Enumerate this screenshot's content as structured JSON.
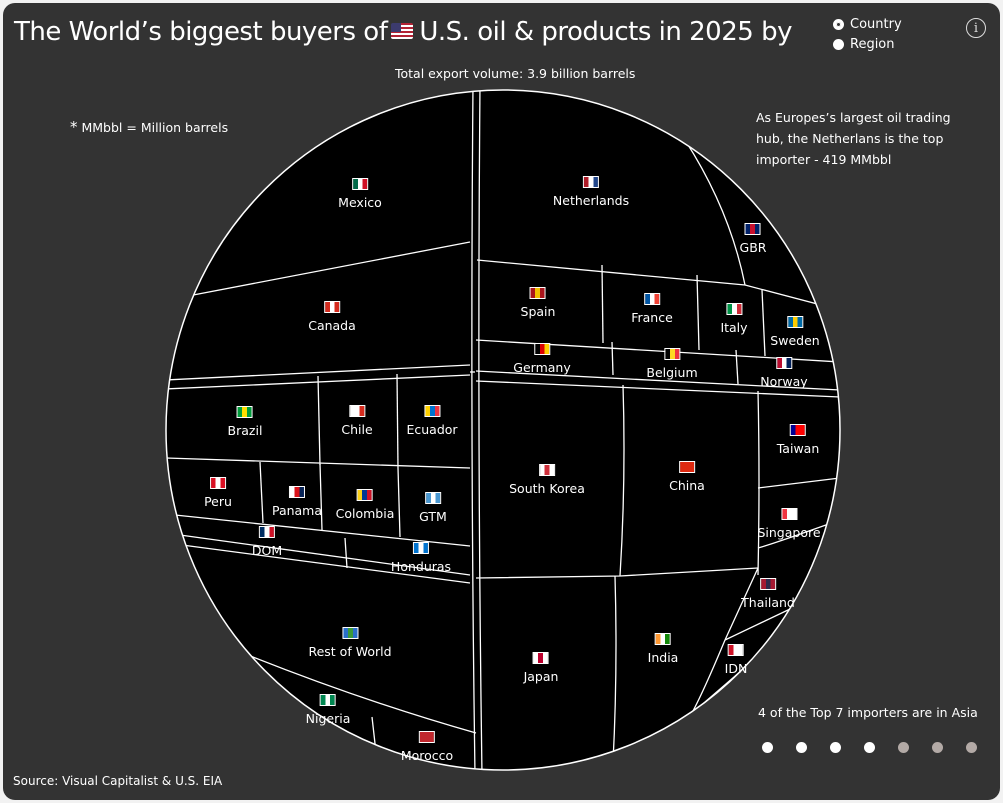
{
  "header": {
    "title_pre": "The World’s biggest buyers of",
    "title_post": "U.S. oil & products in 2025 by",
    "radio": [
      {
        "label": "Country",
        "selected": true
      },
      {
        "label": "Region",
        "selected": false
      }
    ],
    "info_icon": "i"
  },
  "subtitle": "Total export volume: 3.9 billion barrels",
  "footnote_star": "*",
  "footnote": "MMbbl = Million barrels",
  "annotation": "As Europes’s largest oil trading hub, the Netherlans is the top importer - 419 MMbbl",
  "asia_note": "4 of the Top 7 importers are in Asia",
  "top7_dots": [
    "asia",
    "asia",
    "asia",
    "asia",
    "other",
    "other",
    "other"
  ],
  "source": "Source: Visual Capitalist & U.S. EIA",
  "chart_data": {
    "type": "treemap-sphere",
    "title": "The World’s biggest buyers of U.S. oil & products in 2025",
    "total": "3.9 billion barrels",
    "unit": "MMbbl",
    "highlight": {
      "name": "Netherlands",
      "value": 419
    },
    "cells": [
      {
        "name": "Mexico",
        "flag": [
          "#006847",
          "#fff",
          "#ce1126"
        ]
      },
      {
        "name": "Canada",
        "flag": [
          "#d52b1e",
          "#fff",
          "#d52b1e"
        ]
      },
      {
        "name": "Brazil",
        "flag": [
          "#009c3b",
          "#ffdf00",
          "#009c3b"
        ]
      },
      {
        "name": "Chile",
        "flag": [
          "#fff",
          "#fff",
          "#d52b1e"
        ]
      },
      {
        "name": "Ecuador",
        "flag": [
          "#ffd100",
          "#0072ce",
          "#ef3340"
        ]
      },
      {
        "name": "Peru",
        "flag": [
          "#d91023",
          "#fff",
          "#d91023"
        ]
      },
      {
        "name": "Panama",
        "flag": [
          "#fff",
          "#da121a",
          "#072357"
        ]
      },
      {
        "name": "Colombia",
        "flag": [
          "#fcd116",
          "#003893",
          "#ce1126"
        ]
      },
      {
        "name": "GTM",
        "flag": [
          "#4997d0",
          "#fff",
          "#4997d0"
        ]
      },
      {
        "name": "DOM",
        "flag": [
          "#002d62",
          "#fff",
          "#ce1126"
        ]
      },
      {
        "name": "Honduras",
        "flag": [
          "#0073cf",
          "#fff",
          "#0073cf"
        ]
      },
      {
        "name": "Rest of World",
        "flag": [
          "#2a6fc9",
          "#3a9a3a",
          "#2a6fc9"
        ]
      },
      {
        "name": "Nigeria",
        "flag": [
          "#008751",
          "#fff",
          "#008751"
        ]
      },
      {
        "name": "Morocco",
        "flag": [
          "#c1272d",
          "#c1272d",
          "#c1272d"
        ]
      },
      {
        "name": "Netherlands",
        "flag": [
          "#ae1c28",
          "#fff",
          "#21468b"
        ]
      },
      {
        "name": "GBR",
        "flag": [
          "#012169",
          "#c8102e",
          "#012169"
        ]
      },
      {
        "name": "Spain",
        "flag": [
          "#aa151b",
          "#f1bf00",
          "#aa151b"
        ]
      },
      {
        "name": "France",
        "flag": [
          "#0055a4",
          "#fff",
          "#ef4135"
        ]
      },
      {
        "name": "Italy",
        "flag": [
          "#009246",
          "#fff",
          "#ce2b37"
        ]
      },
      {
        "name": "Sweden",
        "flag": [
          "#006aa7",
          "#fecc00",
          "#006aa7"
        ]
      },
      {
        "name": "Germany",
        "flag": [
          "#000",
          "#dd0000",
          "#ffce00"
        ]
      },
      {
        "name": "Belgium",
        "flag": [
          "#000",
          "#fdda24",
          "#ef3340"
        ]
      },
      {
        "name": "Norway",
        "flag": [
          "#ba0c2f",
          "#fff",
          "#00205b"
        ]
      },
      {
        "name": "South Korea",
        "flag": [
          "#fff",
          "#cd2e3a",
          "#fff"
        ]
      },
      {
        "name": "China",
        "flag": [
          "#de2910",
          "#de2910",
          "#de2910"
        ]
      },
      {
        "name": "Taiwan",
        "flag": [
          "#000095",
          "#fe0000",
          "#fe0000"
        ]
      },
      {
        "name": "Singapore",
        "flag": [
          "#ef3340",
          "#fff",
          "#fff"
        ]
      },
      {
        "name": "Thailand",
        "flag": [
          "#a51931",
          "#2d2a4a",
          "#a51931"
        ]
      },
      {
        "name": "Japan",
        "flag": [
          "#fff",
          "#bc002d",
          "#fff"
        ]
      },
      {
        "name": "India",
        "flag": [
          "#ff9933",
          "#fff",
          "#138808"
        ]
      },
      {
        "name": "IDN",
        "flag": [
          "#ce1126",
          "#fff",
          "#fff"
        ]
      }
    ]
  }
}
